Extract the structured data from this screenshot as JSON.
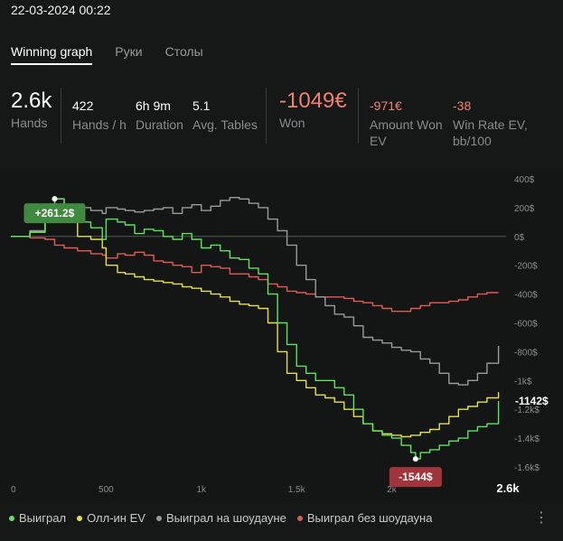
{
  "header": {
    "date": "22-03-2024 00:22"
  },
  "tabs": [
    {
      "label": "Winning graph",
      "active": true
    },
    {
      "label": "Руки",
      "active": false
    },
    {
      "label": "Столы",
      "active": false
    }
  ],
  "stats": {
    "hands": {
      "value": "2.6k",
      "label": "Hands"
    },
    "hands_per_hour": {
      "value": "422",
      "label": "Hands / h"
    },
    "duration": {
      "value": "6h 9m",
      "label": "Duration"
    },
    "avg_tables": {
      "value": "5.1",
      "label": "Avg. Tables"
    },
    "won": {
      "value": "-1049€",
      "label": "Won"
    },
    "amount_won_ev": {
      "value": "-971€",
      "label1": "Amount Won",
      "label2": "EV"
    },
    "win_rate_ev": {
      "value": "-38",
      "label1": "Win Rate EV,",
      "label2": "bb/100"
    }
  },
  "colors": {
    "green": "#5ee35e",
    "yellow": "#e6e045",
    "gray": "#9a9a9a",
    "red": "#e05a55",
    "positive_badge": "#3f8a3f",
    "negative_badge": "#a0363b"
  },
  "legend": [
    {
      "label": "Выиграл",
      "color": "#5ee35e"
    },
    {
      "label": "Олл-ин EV",
      "color": "#e6e045"
    },
    {
      "label": "Выиграл на шоудауне",
      "color": "#9a9a9a"
    },
    {
      "label": "Выиграл без шоудауна",
      "color": "#e05a55"
    }
  ],
  "menu_icon": "kebab-menu-icon",
  "chart_data": {
    "type": "line",
    "xlabel": "",
    "ylabel": "",
    "x_ticks": [
      "0",
      "500",
      "1k",
      "1.5k",
      "2k",
      "2.6k"
    ],
    "x_tick_values": [
      0,
      500,
      1000,
      1500,
      2000,
      2600
    ],
    "y_ticks": [
      "400$",
      "200$",
      "0$",
      "-200$",
      "-400$",
      "-600$",
      "-800$",
      "-1k$",
      "-1.2k$",
      "-1.4k$",
      "-1.6k$"
    ],
    "y_tick_values": [
      400,
      200,
      0,
      -200,
      -400,
      -600,
      -800,
      -1000,
      -1200,
      -1400,
      -1600
    ],
    "xlim": [
      0,
      2600
    ],
    "ylim": [
      -1650,
      450
    ],
    "grid": false,
    "zero_line": true,
    "legend_position": "bottom",
    "annotations": {
      "max": {
        "label": "+261.2$",
        "x": 230,
        "y": 261.2
      },
      "min": {
        "label": "-1544$",
        "x": 2125,
        "y": -1544
      },
      "end": {
        "label": "-1142$"
      }
    },
    "series": [
      {
        "name": "Выиграл",
        "color": "#5ee35e",
        "x": [
          0,
          100,
          180,
          230,
          280,
          350,
          420,
          480,
          500,
          560,
          600,
          650,
          700,
          750,
          800,
          850,
          900,
          950,
          1000,
          1050,
          1100,
          1150,
          1200,
          1250,
          1300,
          1350,
          1400,
          1450,
          1500,
          1550,
          1600,
          1650,
          1700,
          1750,
          1800,
          1850,
          1900,
          1950,
          2000,
          2050,
          2100,
          2125,
          2150,
          2200,
          2250,
          2300,
          2350,
          2400,
          2450,
          2500,
          2560
        ],
        "y": [
          0,
          30,
          130,
          261,
          200,
          100,
          60,
          -20,
          120,
          100,
          80,
          20,
          50,
          40,
          0,
          -20,
          20,
          -20,
          -80,
          -60,
          -100,
          -150,
          -160,
          -220,
          -260,
          -400,
          -600,
          -750,
          -900,
          -950,
          -1000,
          -1000,
          -1050,
          -1100,
          -1200,
          -1300,
          -1350,
          -1380,
          -1400,
          -1450,
          -1500,
          -1544,
          -1500,
          -1480,
          -1450,
          -1420,
          -1400,
          -1350,
          -1320,
          -1300,
          -1142
        ]
      },
      {
        "name": "Олл-ин EV",
        "color": "#e6e045",
        "x": [
          0,
          100,
          180,
          230,
          280,
          350,
          420,
          480,
          500,
          560,
          600,
          650,
          700,
          750,
          800,
          850,
          900,
          950,
          1000,
          1050,
          1100,
          1150,
          1200,
          1250,
          1300,
          1350,
          1400,
          1450,
          1500,
          1550,
          1600,
          1650,
          1700,
          1750,
          1800,
          1850,
          1900,
          1950,
          2000,
          2050,
          2100,
          2150,
          2200,
          2250,
          2300,
          2350,
          2400,
          2450,
          2500,
          2560
        ],
        "y": [
          0,
          30,
          120,
          200,
          100,
          0,
          -20,
          -80,
          -200,
          -250,
          -260,
          -280,
          -300,
          -310,
          -320,
          -330,
          -350,
          -360,
          -380,
          -400,
          -420,
          -450,
          -470,
          -480,
          -500,
          -600,
          -800,
          -950,
          -1000,
          -1050,
          -1100,
          -1120,
          -1150,
          -1200,
          -1250,
          -1300,
          -1350,
          -1370,
          -1380,
          -1390,
          -1380,
          -1360,
          -1340,
          -1300,
          -1250,
          -1200,
          -1180,
          -1150,
          -1120,
          -1080
        ]
      },
      {
        "name": "Выиграл на шоудауне",
        "color": "#9a9a9a",
        "x": [
          0,
          100,
          180,
          230,
          280,
          350,
          420,
          480,
          500,
          560,
          600,
          650,
          700,
          750,
          800,
          850,
          900,
          950,
          1000,
          1050,
          1100,
          1150,
          1200,
          1250,
          1300,
          1350,
          1400,
          1450,
          1500,
          1550,
          1600,
          1650,
          1700,
          1750,
          1800,
          1850,
          1900,
          1950,
          2000,
          2050,
          2100,
          2150,
          2200,
          2250,
          2300,
          2350,
          2400,
          2450,
          2500,
          2560
        ],
        "y": [
          0,
          40,
          150,
          260,
          220,
          200,
          180,
          160,
          200,
          190,
          180,
          170,
          180,
          190,
          200,
          160,
          200,
          220,
          180,
          210,
          250,
          270,
          260,
          230,
          200,
          120,
          40,
          -60,
          -200,
          -300,
          -420,
          -480,
          -540,
          -560,
          -620,
          -700,
          -720,
          -740,
          -770,
          -790,
          -800,
          -850,
          -880,
          -950,
          -1020,
          -1030,
          -1000,
          -950,
          -880,
          -760
        ]
      },
      {
        "name": "Выиграл без шоудауна",
        "color": "#e05a55",
        "x": [
          0,
          100,
          180,
          230,
          280,
          350,
          420,
          480,
          500,
          560,
          600,
          650,
          700,
          750,
          800,
          850,
          900,
          950,
          1000,
          1050,
          1100,
          1150,
          1200,
          1250,
          1300,
          1350,
          1400,
          1450,
          1500,
          1550,
          1600,
          1650,
          1700,
          1750,
          1800,
          1850,
          1900,
          1950,
          2000,
          2050,
          2100,
          2150,
          2200,
          2250,
          2300,
          2350,
          2400,
          2450,
          2500,
          2560
        ],
        "y": [
          0,
          -10,
          -20,
          -60,
          -80,
          -100,
          -120,
          -130,
          -150,
          -120,
          -130,
          -110,
          -130,
          -170,
          -180,
          -200,
          -210,
          -250,
          -200,
          -210,
          -220,
          -260,
          -260,
          -280,
          -300,
          -330,
          -350,
          -380,
          -390,
          -400,
          -420,
          -420,
          -420,
          -430,
          -450,
          -460,
          -480,
          -500,
          -520,
          -520,
          -500,
          -480,
          -460,
          -460,
          -450,
          -440,
          -420,
          -400,
          -390,
          -390
        ]
      }
    ]
  }
}
